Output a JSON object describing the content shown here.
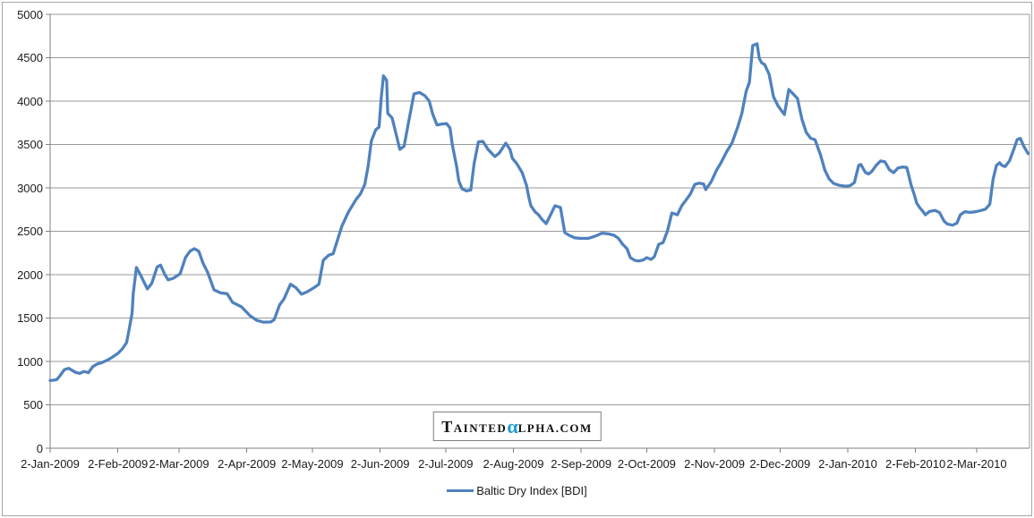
{
  "colors": {
    "series_line": "#4f81bd",
    "gridline": "#9a9a9a",
    "axis": "#7f7f7f",
    "frame_border": "#a6a6a6",
    "watermark_alpha": "#1e9cd7",
    "text": "#1a1a1a"
  },
  "legend": {
    "label": "Baltic Dry Index [BDI]"
  },
  "watermark": {
    "t1": "T",
    "t2": "AINTED",
    "alpha": "α",
    "t3": "LPHA.COM"
  },
  "chart_data": {
    "type": "line",
    "title": "",
    "xlabel": "",
    "ylabel": "",
    "grid": true,
    "legend_position": "bottom-center",
    "y_axis": {
      "min": 0,
      "max": 5000,
      "step": 500,
      "tick_labels": [
        "0",
        "500",
        "1000",
        "1500",
        "2000",
        "2500",
        "3000",
        "3500",
        "4000",
        "4500",
        "5000"
      ]
    },
    "x_axis_note": "daily series; day = days since 2-Jan-2009",
    "x_ticks": [
      {
        "label": "2-Jan-2009",
        "day": 0
      },
      {
        "label": "2-Feb-2009",
        "day": 31
      },
      {
        "label": "2-Mar-2009",
        "day": 59
      },
      {
        "label": "2-Apr-2009",
        "day": 90
      },
      {
        "label": "2-May-2009",
        "day": 120
      },
      {
        "label": "2-Jun-2009",
        "day": 151
      },
      {
        "label": "2-Jul-2009",
        "day": 181
      },
      {
        "label": "2-Aug-2009",
        "day": 212
      },
      {
        "label": "2-Sep-2009",
        "day": 243
      },
      {
        "label": "2-Oct-2009",
        "day": 273
      },
      {
        "label": "2-Nov-2009",
        "day": 304
      },
      {
        "label": "2-Dec-2009",
        "day": 334
      },
      {
        "label": "2-Jan-2010",
        "day": 365
      },
      {
        "label": "2-Feb-2010",
        "day": 396
      },
      {
        "label": "2-Mar-2010",
        "day": 424
      }
    ],
    "series": [
      {
        "name": "Baltic Dry Index [BDI]",
        "color": "#4f81bd",
        "points": [
          [
            0,
            780
          ],
          [
            1,
            782
          ],
          [
            3,
            790
          ],
          [
            4.5,
            835
          ],
          [
            6.5,
            905
          ],
          [
            8.5,
            921
          ],
          [
            11.5,
            875
          ],
          [
            13.5,
            862
          ],
          [
            15.5,
            885
          ],
          [
            17.5,
            870
          ],
          [
            19.5,
            940
          ],
          [
            21.5,
            970
          ],
          [
            24,
            990
          ],
          [
            26.5,
            1020
          ],
          [
            28.5,
            1050
          ],
          [
            31,
            1093
          ],
          [
            33,
            1144
          ],
          [
            35,
            1216
          ],
          [
            36,
            1350
          ],
          [
            37.5,
            1550
          ],
          [
            38,
            1780
          ],
          [
            39.5,
            2082
          ],
          [
            41.5,
            1990
          ],
          [
            44.5,
            1835
          ],
          [
            46.5,
            1900
          ],
          [
            49,
            2090
          ],
          [
            50.5,
            2110
          ],
          [
            52.5,
            2000
          ],
          [
            54,
            1940
          ],
          [
            56.5,
            1960
          ],
          [
            59.5,
            2010
          ],
          [
            62,
            2200
          ],
          [
            64,
            2270
          ],
          [
            66,
            2300
          ],
          [
            68,
            2270
          ],
          [
            70,
            2130
          ],
          [
            72,
            2030
          ],
          [
            75,
            1825
          ],
          [
            78,
            1790
          ],
          [
            81,
            1780
          ],
          [
            83.5,
            1680
          ],
          [
            87.5,
            1630
          ],
          [
            91.5,
            1526
          ],
          [
            94.5,
            1474
          ],
          [
            97.5,
            1453
          ],
          [
            101,
            1455
          ],
          [
            102.5,
            1480
          ],
          [
            105,
            1650
          ],
          [
            107,
            1720
          ],
          [
            110,
            1890
          ],
          [
            112.5,
            1850
          ],
          [
            115,
            1775
          ],
          [
            117.5,
            1800
          ],
          [
            121,
            1855
          ],
          [
            123,
            1890
          ],
          [
            125,
            2165
          ],
          [
            127.5,
            2225
          ],
          [
            129.5,
            2240
          ],
          [
            131.5,
            2400
          ],
          [
            133.5,
            2560
          ],
          [
            136.5,
            2722
          ],
          [
            140,
            2866
          ],
          [
            142,
            2930
          ],
          [
            144,
            3040
          ],
          [
            145.5,
            3250
          ],
          [
            147,
            3540
          ],
          [
            149,
            3670
          ],
          [
            150.5,
            3700
          ],
          [
            151.5,
            4031
          ],
          [
            152.5,
            4291
          ],
          [
            154,
            4237
          ],
          [
            154.5,
            3860
          ],
          [
            156.5,
            3805
          ],
          [
            158,
            3650
          ],
          [
            160,
            3443
          ],
          [
            162,
            3480
          ],
          [
            164,
            3753
          ],
          [
            166.5,
            4082
          ],
          [
            169,
            4100
          ],
          [
            171.5,
            4062
          ],
          [
            173.5,
            4000
          ],
          [
            175,
            3856
          ],
          [
            177,
            3725
          ],
          [
            179,
            3735
          ],
          [
            181.5,
            3740
          ],
          [
            183,
            3690
          ],
          [
            184,
            3500
          ],
          [
            186,
            3250
          ],
          [
            187,
            3080
          ],
          [
            188.5,
            2990
          ],
          [
            190.5,
            2965
          ],
          [
            192.5,
            2975
          ],
          [
            194,
            3280
          ],
          [
            196,
            3530
          ],
          [
            198,
            3536
          ],
          [
            200.5,
            3440
          ],
          [
            203.5,
            3361
          ],
          [
            205.5,
            3400
          ],
          [
            208.5,
            3515
          ],
          [
            210.5,
            3440
          ],
          [
            211.5,
            3340
          ],
          [
            213.5,
            3280
          ],
          [
            216,
            3175
          ],
          [
            218,
            3030
          ],
          [
            219,
            2897
          ],
          [
            220,
            2794
          ],
          [
            222,
            2722
          ],
          [
            223.5,
            2690
          ],
          [
            225,
            2639
          ],
          [
            227,
            2588
          ],
          [
            229,
            2690
          ],
          [
            231,
            2794
          ],
          [
            233.5,
            2775
          ],
          [
            235.5,
            2485
          ],
          [
            237.5,
            2454
          ],
          [
            240,
            2425
          ],
          [
            243,
            2418
          ],
          [
            246.5,
            2420
          ],
          [
            250,
            2450
          ],
          [
            252.5,
            2478
          ],
          [
            255.5,
            2470
          ],
          [
            258,
            2454
          ],
          [
            260,
            2420
          ],
          [
            262,
            2350
          ],
          [
            264,
            2299
          ],
          [
            265.5,
            2196
          ],
          [
            267.5,
            2165
          ],
          [
            269.5,
            2158
          ],
          [
            271.5,
            2170
          ],
          [
            273,
            2196
          ],
          [
            275,
            2175
          ],
          [
            276.5,
            2206
          ],
          [
            278.5,
            2350
          ],
          [
            280.5,
            2370
          ],
          [
            282.5,
            2505
          ],
          [
            284.5,
            2711
          ],
          [
            287,
            2690
          ],
          [
            289,
            2794
          ],
          [
            291,
            2860
          ],
          [
            293,
            2930
          ],
          [
            295,
            3040
          ],
          [
            297,
            3055
          ],
          [
            299,
            3045
          ],
          [
            300,
            2980
          ],
          [
            302.5,
            3070
          ],
          [
            305,
            3206
          ],
          [
            307,
            3290
          ],
          [
            309.5,
            3413
          ],
          [
            312,
            3516
          ],
          [
            314.5,
            3690
          ],
          [
            316.5,
            3856
          ],
          [
            318.5,
            4114
          ],
          [
            320,
            4217
          ],
          [
            321.5,
            4640
          ],
          [
            323.5,
            4661
          ],
          [
            324.5,
            4495
          ],
          [
            325.5,
            4443
          ],
          [
            327,
            4420
          ],
          [
            329,
            4310
          ],
          [
            331,
            4052
          ],
          [
            333,
            3948
          ],
          [
            334.5,
            3896
          ],
          [
            336,
            3845
          ],
          [
            338,
            4134
          ],
          [
            340,
            4082
          ],
          [
            342,
            4030
          ],
          [
            344,
            3794
          ],
          [
            346,
            3639
          ],
          [
            348,
            3572
          ],
          [
            350,
            3555
          ],
          [
            352.5,
            3381
          ],
          [
            354.5,
            3206
          ],
          [
            356.5,
            3103
          ],
          [
            358.5,
            3052
          ],
          [
            361,
            3030
          ],
          [
            364,
            3020
          ],
          [
            366,
            3025
          ],
          [
            368,
            3060
          ],
          [
            370,
            3260
          ],
          [
            371,
            3270
          ],
          [
            373,
            3180
          ],
          [
            374.5,
            3160
          ],
          [
            376,
            3190
          ],
          [
            378,
            3260
          ],
          [
            380,
            3310
          ],
          [
            382,
            3300
          ],
          [
            384,
            3210
          ],
          [
            386,
            3175
          ],
          [
            388,
            3230
          ],
          [
            390,
            3240
          ],
          [
            392,
            3235
          ],
          [
            394,
            3030
          ],
          [
            395.5,
            2918
          ],
          [
            396.5,
            2825
          ],
          [
            398,
            2770
          ],
          [
            399.5,
            2725
          ],
          [
            400.5,
            2690
          ],
          [
            402.5,
            2730
          ],
          [
            405,
            2740
          ],
          [
            407,
            2715
          ],
          [
            409,
            2620
          ],
          [
            410.5,
            2585
          ],
          [
            413,
            2570
          ],
          [
            415,
            2595
          ],
          [
            416.5,
            2690
          ],
          [
            418.5,
            2725
          ],
          [
            421,
            2718
          ],
          [
            423.5,
            2725
          ],
          [
            426,
            2740
          ],
          [
            428,
            2755
          ],
          [
            430,
            2810
          ],
          [
            431.5,
            3100
          ],
          [
            433,
            3258
          ],
          [
            434.5,
            3290
          ],
          [
            435.5,
            3260
          ],
          [
            437,
            3245
          ],
          [
            439,
            3310
          ],
          [
            441.5,
            3480
          ],
          [
            442.5,
            3557
          ],
          [
            444,
            3570
          ],
          [
            445.5,
            3480
          ],
          [
            447.5,
            3395
          ]
        ]
      }
    ]
  }
}
